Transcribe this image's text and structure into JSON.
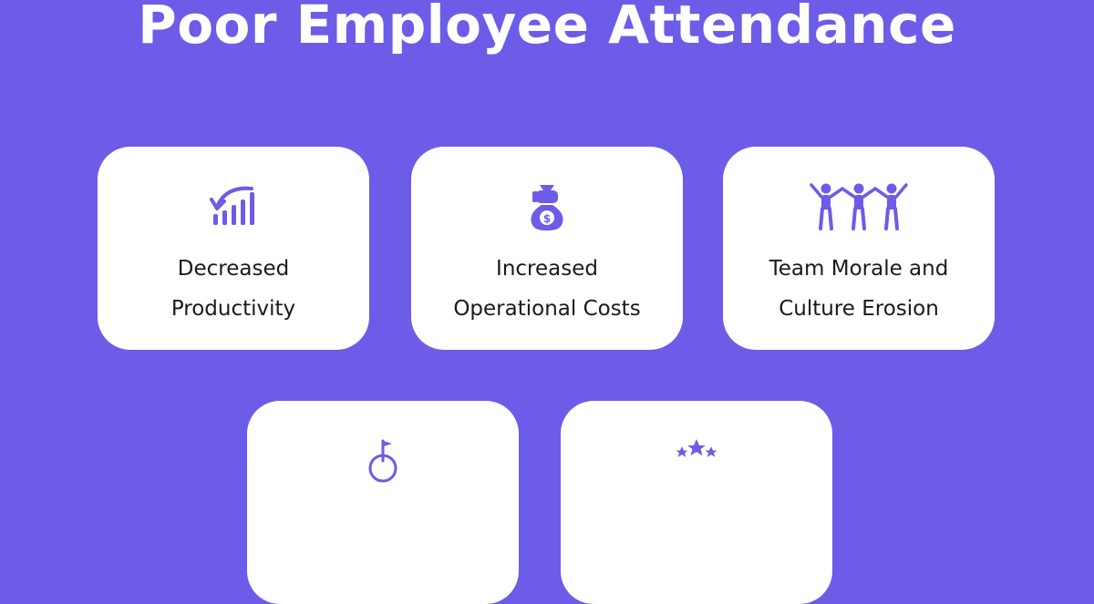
{
  "title": "Poor Employee Attendance",
  "colors": {
    "background": "#6c5ce7",
    "card": "#ffffff",
    "icon": "#6c5ce7",
    "text": "#1a1a1a"
  },
  "cards": [
    {
      "icon": "declining-chart-icon",
      "label_lines": [
        "Decreased",
        "Productivity"
      ]
    },
    {
      "icon": "money-bag-hand-icon",
      "label_lines": [
        "Increased",
        "Operational Costs"
      ]
    },
    {
      "icon": "team-people-icon",
      "label_lines": [
        "Team Morale and",
        "Culture Erosion"
      ]
    },
    {
      "icon": "goal-target-flag-icon",
      "label_lines": []
    },
    {
      "icon": "star-rating-icon",
      "label_lines": []
    }
  ]
}
